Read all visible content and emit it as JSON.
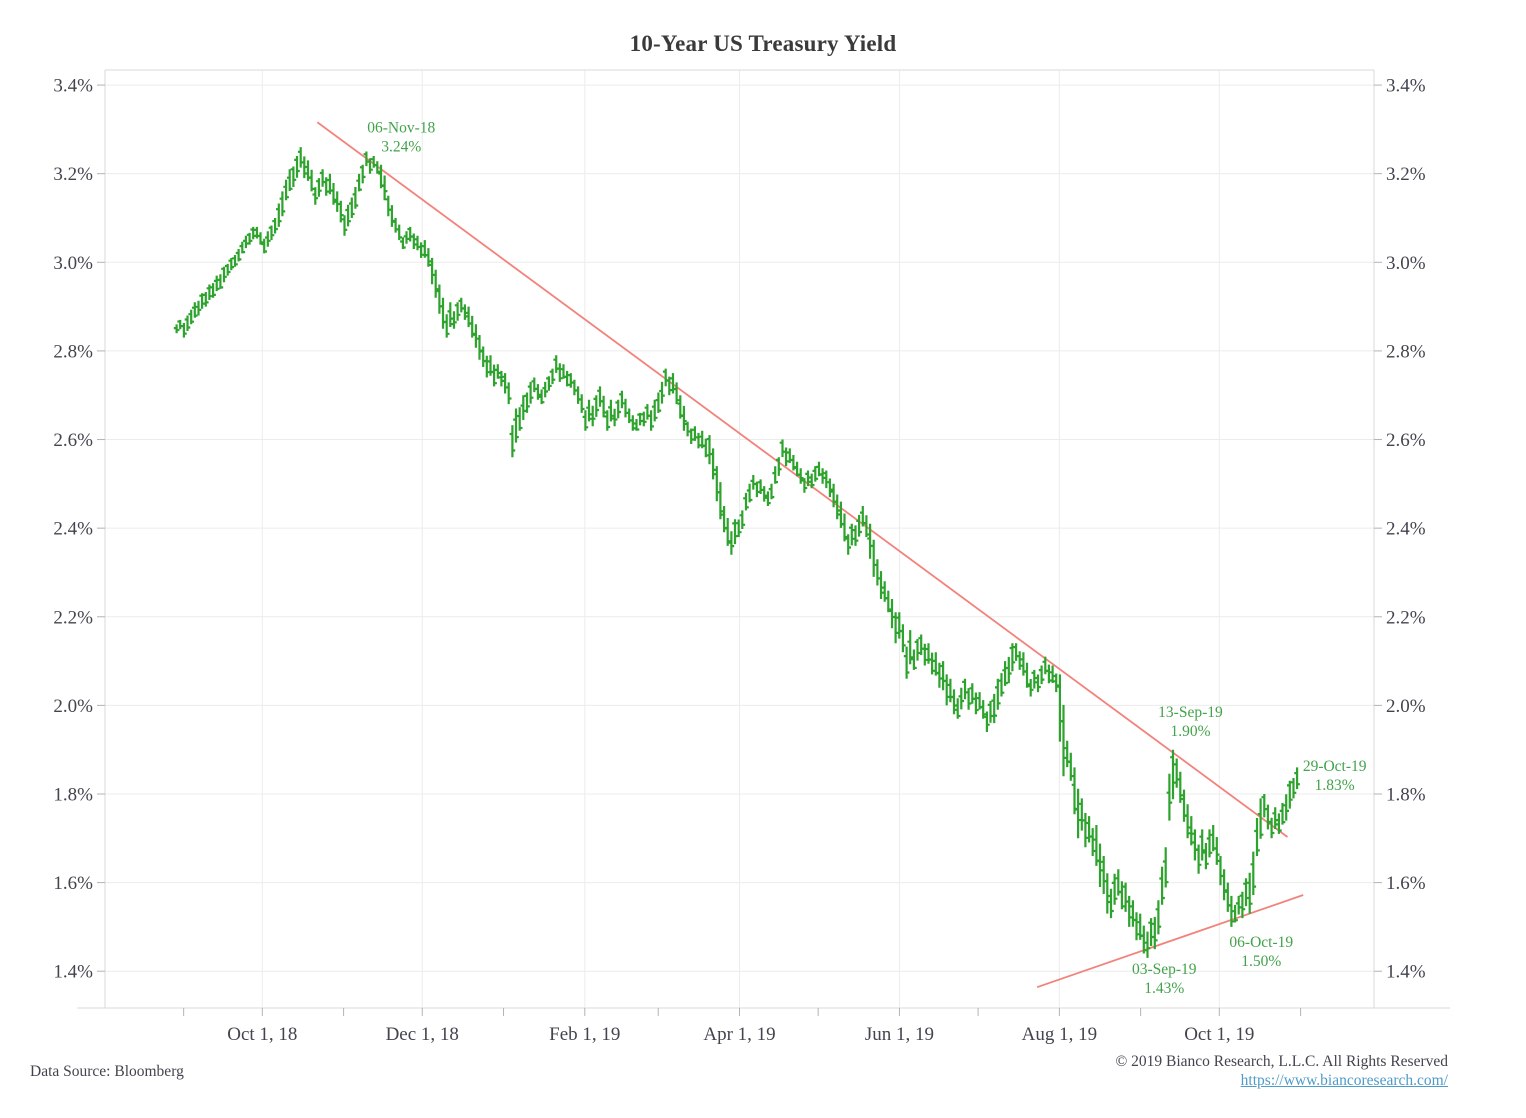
{
  "title": "10-Year US Treasury Yield",
  "footer": {
    "data_source": "Data Source: Bloomberg",
    "copyright": "© 2019 Bianco Research, L.L.C. All Rights Reserved",
    "link_text": "https://www.biancoresearch.com/",
    "link_href": "https://www.biancoresearch.com/"
  },
  "colors": {
    "bar_green": "#2da32d",
    "trendline_red": "#f2837b",
    "annotation_green": "#43a24b",
    "grid": "#ececec",
    "axis_border": "#d9d9d9",
    "tick": "#b3b3b3",
    "axis_label": "#42454e"
  },
  "chart_data": {
    "type": "bar",
    "subtype": "daily-high-low-ohlc-bars",
    "title": "10-Year US Treasury Yield",
    "y_ticks": [
      {
        "value": 3.4,
        "label": "3.4%"
      },
      {
        "value": 3.2,
        "label": "3.2%"
      },
      {
        "value": 3.0,
        "label": "3.0%"
      },
      {
        "value": 2.8,
        "label": "2.8%"
      },
      {
        "value": 2.6,
        "label": "2.6%"
      },
      {
        "value": 2.4,
        "label": "2.4%"
      },
      {
        "value": 2.2,
        "label": "2.2%"
      },
      {
        "value": 2.0,
        "label": "2.0%"
      },
      {
        "value": 1.8,
        "label": "1.8%"
      },
      {
        "value": 1.6,
        "label": "1.6%"
      },
      {
        "value": 1.4,
        "label": "1.4%"
      }
    ],
    "ylim": [
      1.317,
      3.434
    ],
    "x_window_days": [
      -28,
      456
    ],
    "x_ticks_major": [
      {
        "day": 32,
        "label": "Oct 1, 18"
      },
      {
        "day": 93,
        "label": "Dec 1, 18"
      },
      {
        "day": 155,
        "label": "Feb 1, 19"
      },
      {
        "day": 214,
        "label": "Apr 1, 19"
      },
      {
        "day": 275,
        "label": "Jun 1, 19"
      },
      {
        "day": 336,
        "label": "Aug 1, 19"
      },
      {
        "day": 397,
        "label": "Oct 1, 19"
      }
    ],
    "x_ticks_minor_days": [
      2,
      63,
      124,
      183,
      244,
      305,
      367,
      428
    ],
    "series": {
      "name": "10-Year US Treasury Yield",
      "unit": "percent",
      "start_date": "30-Aug-18",
      "end_date": "30-Oct-19",
      "span_days": 426,
      "bars_low_high": [
        [
          2.84,
          2.87
        ],
        [
          2.83,
          2.88
        ],
        [
          2.86,
          2.91
        ],
        [
          2.88,
          2.93
        ],
        [
          2.9,
          2.95
        ],
        [
          2.92,
          2.97
        ],
        [
          2.94,
          2.99
        ],
        [
          2.97,
          3.01
        ],
        [
          2.99,
          3.03
        ],
        [
          3.02,
          3.06
        ],
        [
          3.04,
          3.08
        ],
        [
          3.04,
          3.08
        ],
        [
          3.02,
          3.07
        ],
        [
          3.05,
          3.1
        ],
        [
          3.08,
          3.16
        ],
        [
          3.14,
          3.21
        ],
        [
          3.17,
          3.24
        ],
        [
          3.19,
          3.26
        ],
        [
          3.16,
          3.23
        ],
        [
          3.13,
          3.19
        ],
        [
          3.15,
          3.21
        ],
        [
          3.13,
          3.2
        ],
        [
          3.09,
          3.16
        ],
        [
          3.06,
          3.13
        ],
        [
          3.1,
          3.17
        ],
        [
          3.16,
          3.22
        ],
        [
          3.2,
          3.25
        ],
        [
          3.2,
          3.24
        ],
        [
          3.14,
          3.22
        ],
        [
          3.08,
          3.15
        ],
        [
          3.05,
          3.1
        ],
        [
          3.03,
          3.07
        ],
        [
          3.03,
          3.08
        ],
        [
          3.01,
          3.06
        ],
        [
          2.99,
          3.05
        ],
        [
          2.92,
          3.01
        ],
        [
          2.85,
          2.95
        ],
        [
          2.83,
          2.91
        ],
        [
          2.85,
          2.91
        ],
        [
          2.87,
          2.92
        ],
        [
          2.83,
          2.9
        ],
        [
          2.78,
          2.86
        ],
        [
          2.74,
          2.81
        ],
        [
          2.72,
          2.79
        ],
        [
          2.72,
          2.77
        ],
        [
          2.68,
          2.75
        ],
        [
          2.56,
          2.67
        ],
        [
          2.62,
          2.7
        ],
        [
          2.66,
          2.73
        ],
        [
          2.69,
          2.74
        ],
        [
          2.68,
          2.73
        ],
        [
          2.71,
          2.76
        ],
        [
          2.73,
          2.79
        ],
        [
          2.72,
          2.77
        ],
        [
          2.7,
          2.75
        ],
        [
          2.66,
          2.72
        ],
        [
          2.62,
          2.69
        ],
        [
          2.63,
          2.7
        ],
        [
          2.65,
          2.72
        ],
        [
          2.62,
          2.69
        ],
        [
          2.63,
          2.69
        ],
        [
          2.65,
          2.71
        ],
        [
          2.62,
          2.67
        ],
        [
          2.62,
          2.66
        ],
        [
          2.63,
          2.68
        ],
        [
          2.62,
          2.69
        ],
        [
          2.66,
          2.73
        ],
        [
          2.7,
          2.76
        ],
        [
          2.68,
          2.75
        ],
        [
          2.62,
          2.7
        ],
        [
          2.59,
          2.64
        ],
        [
          2.58,
          2.63
        ],
        [
          2.56,
          2.62
        ],
        [
          2.51,
          2.61
        ],
        [
          2.42,
          2.54
        ],
        [
          2.36,
          2.45
        ],
        [
          2.34,
          2.42
        ],
        [
          2.38,
          2.44
        ],
        [
          2.44,
          2.5
        ],
        [
          2.47,
          2.52
        ],
        [
          2.46,
          2.51
        ],
        [
          2.45,
          2.5
        ],
        [
          2.5,
          2.56
        ],
        [
          2.54,
          2.6
        ],
        [
          2.53,
          2.58
        ],
        [
          2.5,
          2.55
        ],
        [
          2.48,
          2.53
        ],
        [
          2.49,
          2.54
        ],
        [
          2.5,
          2.55
        ],
        [
          2.47,
          2.53
        ],
        [
          2.42,
          2.5
        ],
        [
          2.37,
          2.46
        ],
        [
          2.34,
          2.41
        ],
        [
          2.36,
          2.43
        ],
        [
          2.38,
          2.45
        ],
        [
          2.29,
          2.41
        ],
        [
          2.24,
          2.33
        ],
        [
          2.21,
          2.28
        ],
        [
          2.14,
          2.24
        ],
        [
          2.12,
          2.21
        ],
        [
          2.06,
          2.17
        ],
        [
          2.08,
          2.15
        ],
        [
          2.09,
          2.16
        ],
        [
          2.07,
          2.14
        ],
        [
          2.04,
          2.12
        ],
        [
          2.0,
          2.1
        ],
        [
          1.98,
          2.06
        ],
        [
          1.97,
          2.04
        ],
        [
          1.99,
          2.06
        ],
        [
          1.98,
          2.05
        ],
        [
          1.97,
          2.03
        ],
        [
          1.94,
          2.01
        ],
        [
          1.96,
          2.06
        ],
        [
          2.02,
          2.1
        ],
        [
          2.05,
          2.14
        ],
        [
          2.08,
          2.14
        ],
        [
          2.04,
          2.12
        ],
        [
          2.02,
          2.08
        ],
        [
          2.03,
          2.09
        ],
        [
          2.05,
          2.11
        ],
        [
          2.03,
          2.09
        ],
        [
          1.84,
          2.07
        ],
        [
          1.83,
          1.92
        ],
        [
          1.7,
          1.86
        ],
        [
          1.68,
          1.79
        ],
        [
          1.66,
          1.75
        ],
        [
          1.59,
          1.73
        ],
        [
          1.53,
          1.66
        ],
        [
          1.52,
          1.62
        ],
        [
          1.54,
          1.63
        ],
        [
          1.5,
          1.6
        ],
        [
          1.47,
          1.56
        ],
        [
          1.44,
          1.53
        ],
        [
          1.43,
          1.52
        ],
        [
          1.45,
          1.56
        ],
        [
          1.55,
          1.68
        ],
        [
          1.74,
          1.9
        ],
        [
          1.78,
          1.88
        ],
        [
          1.7,
          1.81
        ],
        [
          1.65,
          1.75
        ],
        [
          1.62,
          1.72
        ],
        [
          1.63,
          1.72
        ],
        [
          1.64,
          1.73
        ],
        [
          1.56,
          1.66
        ],
        [
          1.5,
          1.6
        ],
        [
          1.51,
          1.57
        ],
        [
          1.52,
          1.61
        ],
        [
          1.53,
          1.67
        ],
        [
          1.66,
          1.79
        ],
        [
          1.72,
          1.8
        ],
        [
          1.7,
          1.77
        ],
        [
          1.71,
          1.78
        ],
        [
          1.74,
          1.83
        ],
        [
          1.79,
          1.86
        ]
      ]
    },
    "trendlines": [
      {
        "name": "downtrend-resistance",
        "x1_day": 53,
        "y1": 3.316,
        "x2_day": 423,
        "y2": 1.703
      },
      {
        "name": "uptrend-support",
        "x1_day": 327.5,
        "y1": 1.364,
        "x2_day": 429,
        "y2": 1.572
      }
    ],
    "annotations": [
      {
        "date": "06-Nov-18",
        "value": "3.24%",
        "x_day": 85,
        "y_top": 3.325
      },
      {
        "date": "13-Sep-19",
        "value": "1.90%",
        "x_day": 386,
        "y_top": 2.005
      },
      {
        "date": "29-Oct-19",
        "value": "1.83%",
        "x_day": 441,
        "y_top": 1.883
      },
      {
        "date": "03-Sep-19",
        "value": "1.43%",
        "x_day": 376,
        "y_top": 1.425
      },
      {
        "date": "06-Oct-19",
        "value": "1.50%",
        "x_day": 413,
        "y_top": 1.486
      }
    ]
  }
}
